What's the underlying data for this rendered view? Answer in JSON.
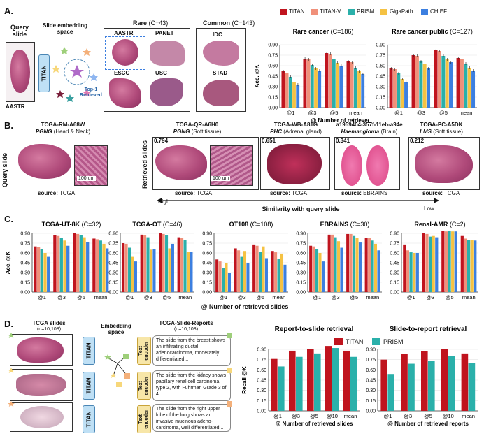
{
  "colors": {
    "titan": "#c0141e",
    "titan_v": "#f0907a",
    "prism": "#2ab0aa",
    "gigapath": "#f5c243",
    "chief": "#3c7fe0"
  },
  "panelA": {
    "label": "A.",
    "query_title": "Query\nslide",
    "query_name": "AASTR",
    "space_title": "Slide embedding\nspace",
    "titan": "TITAN",
    "top1": "Top-1\nRetrieved",
    "rare_title": "Rare",
    "rare_count": "(C=43)",
    "rare_items": [
      "AASTR",
      "PANET",
      "ESCC",
      "USC"
    ],
    "common_title": "Common",
    "common_count": "(C=143)",
    "common_items": [
      "IDC",
      "STAD"
    ],
    "legend": [
      "TITAN",
      "TITAN-V",
      "PRISM",
      "GigaPath",
      "CHIEF"
    ]
  },
  "panelB": {
    "label": "B.",
    "query_axis": "Query slide",
    "retrieved_axis": "Retrieved slides",
    "scale": "100 um",
    "slides": [
      {
        "id": "TCGA-RM-A68W",
        "dx": "PGNG",
        "site": "(Head & Neck)",
        "source": "TCGA",
        "score": ""
      },
      {
        "id": "TCGA-QR-A6H0",
        "dx": "PGNG",
        "site": "(Soft tissue)",
        "source": "TCGA",
        "score": "0.794"
      },
      {
        "id": "TCGA-WB-A81G",
        "dx": "PHC",
        "site": "(Adrenal gland)",
        "source": "TCGA",
        "score": "0.651"
      },
      {
        "id": "a1959404-357f-11eb-a94e",
        "dx": "Haemangioma",
        "site": "(Brain)",
        "source": "EBRAINS",
        "score": "0.341"
      },
      {
        "id": "TCGA-PC-A5DK",
        "dx": "LMS",
        "site": "(Soft tissue)",
        "source": "TCGA",
        "score": "0.212"
      }
    ],
    "source_label": "source:",
    "high": "High",
    "low": "Low",
    "similarity": "Similarity with query slide"
  },
  "panelC": {
    "label": "C."
  },
  "panelD": {
    "label": "D.",
    "slides_title": "TCGA slides",
    "slides_n": "(n=10,108)",
    "space_title": "Embedding\nspace",
    "reports_title": "TCGA-Slide-Reports",
    "reports_n": "(n=10,108)",
    "titan": "TITAN",
    "encoder": "Text\nencoder",
    "reports": [
      "The slide from the breast shows an infiltrating ductal adenocarcinoma, moderately differentiated...",
      "The slide from the kidney shows papillary renal cell carcinoma, type 2, with Fuhrman Grade 3 of 4...",
      "The slide from the right upper lobe of the lung shows an invasive mucinous adeno-carcinoma, well differentiated..."
    ],
    "legend": [
      "TITAN",
      "PRISM"
    ]
  },
  "chart_data": [
    {
      "type": "bar",
      "panel": "A",
      "title": "Rare cancer",
      "title_count": "(C=186)",
      "ylabel": "Acc. @K",
      "xlabel": "@ Number of retrieved slides",
      "categories": [
        "@1",
        "@3",
        "@5",
        "mean"
      ],
      "ylim": [
        0,
        0.9
      ],
      "yticks": [
        "0.00",
        "0.15",
        "0.30",
        "0.45",
        "0.60",
        "0.75",
        "0.90"
      ],
      "series": [
        {
          "name": "TITAN",
          "values": [
            0.52,
            0.7,
            0.78,
            0.66
          ]
        },
        {
          "name": "TITAN-V",
          "values": [
            0.5,
            0.69,
            0.77,
            0.65
          ]
        },
        {
          "name": "PRISM",
          "values": [
            0.44,
            0.61,
            0.69,
            0.57
          ]
        },
        {
          "name": "GigaPath",
          "values": [
            0.37,
            0.56,
            0.64,
            0.52
          ]
        },
        {
          "name": "CHIEF",
          "values": [
            0.33,
            0.53,
            0.6,
            0.48
          ]
        }
      ]
    },
    {
      "type": "bar",
      "panel": "A",
      "title": "Rare cancer public",
      "title_count": "(C=127)",
      "ylabel": "",
      "xlabel": "",
      "categories": [
        "@1",
        "@3",
        "@5",
        "mean"
      ],
      "ylim": [
        0,
        0.9
      ],
      "yticks": [
        "0.00",
        "0.15",
        "0.30",
        "0.45",
        "0.60",
        "0.75",
        "0.90"
      ],
      "series": [
        {
          "name": "TITAN",
          "values": [
            0.56,
            0.75,
            0.82,
            0.71
          ]
        },
        {
          "name": "TITAN-V",
          "values": [
            0.55,
            0.74,
            0.81,
            0.7
          ]
        },
        {
          "name": "PRISM",
          "values": [
            0.49,
            0.66,
            0.74,
            0.63
          ]
        },
        {
          "name": "GigaPath",
          "values": [
            0.41,
            0.62,
            0.69,
            0.57
          ]
        },
        {
          "name": "CHIEF",
          "values": [
            0.37,
            0.56,
            0.65,
            0.53
          ]
        }
      ]
    },
    {
      "type": "bar",
      "panel": "C",
      "title": "TCGA-UT-8K",
      "title_count": "(C=32)",
      "ylabel": "Acc. @K",
      "categories": [
        "@1",
        "@3",
        "@5",
        "mean"
      ],
      "ylim": [
        0,
        0.9
      ],
      "yticks": [
        "0.00",
        "0.15",
        "0.30",
        "0.45",
        "0.60",
        "0.75",
        "0.90"
      ],
      "series": [
        {
          "name": "TITAN",
          "values": [
            0.7,
            0.87,
            0.9,
            0.82
          ]
        },
        {
          "name": "TITAN-V",
          "values": [
            0.69,
            0.86,
            0.89,
            0.81
          ]
        },
        {
          "name": "PRISM",
          "values": [
            0.66,
            0.83,
            0.87,
            0.79
          ]
        },
        {
          "name": "GigaPath",
          "values": [
            0.6,
            0.79,
            0.84,
            0.74
          ]
        },
        {
          "name": "CHIEF",
          "values": [
            0.54,
            0.71,
            0.77,
            0.67
          ]
        }
      ]
    },
    {
      "type": "bar",
      "panel": "C",
      "title": "TCGA-OT",
      "title_count": "(C=46)",
      "ylabel": "",
      "categories": [
        "@1",
        "@3",
        "@5",
        "mean"
      ],
      "ylim": [
        0,
        0.9
      ],
      "yticks": [
        "0.00",
        "0.15",
        "0.30",
        "0.45",
        "0.60",
        "0.75",
        "0.90"
      ],
      "series": [
        {
          "name": "TITAN",
          "values": [
            0.75,
            0.88,
            0.9,
            0.84
          ]
        },
        {
          "name": "TITAN-V",
          "values": [
            0.74,
            0.87,
            0.89,
            0.83
          ]
        },
        {
          "name": "PRISM",
          "values": [
            0.68,
            0.84,
            0.87,
            0.8
          ]
        },
        {
          "name": "GigaPath",
          "values": [
            0.54,
            0.65,
            0.67,
            0.62
          ]
        },
        {
          "name": "CHIEF",
          "values": [
            0.47,
            0.66,
            0.74,
            0.62
          ]
        }
      ]
    },
    {
      "type": "bar",
      "panel": "C",
      "title": "OT108",
      "title_count": "(C=108)",
      "ylabel": "",
      "categories": [
        "@1",
        "@3",
        "@5",
        "mean"
      ],
      "ylim": [
        0,
        0.9
      ],
      "yticks": [
        "0.00",
        "0.15",
        "0.30",
        "0.45",
        "0.60",
        "0.75",
        "0.90"
      ],
      "series": [
        {
          "name": "TITAN",
          "values": [
            0.5,
            0.67,
            0.73,
            0.63
          ]
        },
        {
          "name": "TITAN-V",
          "values": [
            0.47,
            0.64,
            0.71,
            0.61
          ]
        },
        {
          "name": "PRISM",
          "values": [
            0.37,
            0.54,
            0.62,
            0.51
          ]
        },
        {
          "name": "GigaPath",
          "values": [
            0.44,
            0.63,
            0.7,
            0.59
          ]
        },
        {
          "name": "CHIEF",
          "values": [
            0.29,
            0.45,
            0.52,
            0.42
          ]
        }
      ]
    },
    {
      "type": "bar",
      "panel": "C",
      "title": "EBRAINS",
      "title_count": "(C=30)",
      "ylabel": "",
      "categories": [
        "@1",
        "@3",
        "@5",
        "mean"
      ],
      "ylim": [
        0,
        0.9
      ],
      "yticks": [
        "0.00",
        "0.15",
        "0.30",
        "0.45",
        "0.60",
        "0.75",
        "0.90"
      ],
      "series": [
        {
          "name": "TITAN",
          "values": [
            0.71,
            0.88,
            0.89,
            0.83
          ]
        },
        {
          "name": "TITAN-V",
          "values": [
            0.7,
            0.88,
            0.89,
            0.83
          ]
        },
        {
          "name": "PRISM",
          "values": [
            0.66,
            0.84,
            0.86,
            0.79
          ]
        },
        {
          "name": "GigaPath",
          "values": [
            0.6,
            0.78,
            0.83,
            0.74
          ]
        },
        {
          "name": "CHIEF",
          "values": [
            0.47,
            0.68,
            0.76,
            0.64
          ]
        }
      ]
    },
    {
      "type": "bar",
      "panel": "C",
      "title": "Renal-AMR",
      "title_count": "(C=2)",
      "ylabel": "",
      "categories": [
        "@1",
        "@3",
        "@5",
        "mean"
      ],
      "ylim": [
        0,
        0.9
      ],
      "yticks": [
        "0.00",
        "0.15",
        "0.30",
        "0.45",
        "0.60",
        "0.75",
        "0.90"
      ],
      "series": [
        {
          "name": "TITAN",
          "values": [
            0.73,
            0.9,
            0.94,
            0.86
          ]
        },
        {
          "name": "TITAN-V",
          "values": [
            0.64,
            0.89,
            0.93,
            0.82
          ]
        },
        {
          "name": "PRISM",
          "values": [
            0.61,
            0.85,
            0.94,
            0.8
          ]
        },
        {
          "name": "GigaPath",
          "values": [
            0.6,
            0.86,
            0.93,
            0.8
          ]
        },
        {
          "name": "CHIEF",
          "values": [
            0.6,
            0.84,
            0.93,
            0.79
          ]
        }
      ]
    },
    {
      "type": "bar",
      "panel": "D",
      "title": "Report-to-slide retrieval",
      "ylabel": "Recall @K",
      "xlabel": "@ Number of retrieved slides",
      "categories": [
        "@1",
        "@3",
        "@5",
        "@10",
        "mean"
      ],
      "ylim": [
        0,
        0.9
      ],
      "yticks": [
        "0.00",
        "0.15",
        "0.30",
        "0.45",
        "0.60",
        "0.75",
        "0.90"
      ],
      "series": [
        {
          "name": "TITAN",
          "values": [
            0.76,
            0.88,
            0.91,
            0.95,
            0.88
          ]
        },
        {
          "name": "PRISM",
          "values": [
            0.65,
            0.79,
            0.84,
            0.92,
            0.79
          ]
        }
      ]
    },
    {
      "type": "bar",
      "panel": "D",
      "title": "Slide-to-report retrieval",
      "ylabel": "",
      "xlabel": "@ Number of retrieved reports",
      "categories": [
        "@1",
        "@3",
        "@5",
        "@10",
        "mean"
      ],
      "ylim": [
        0,
        0.9
      ],
      "yticks": [
        "0.00",
        "0.15",
        "0.30",
        "0.45",
        "0.60",
        "0.75",
        "0.90"
      ],
      "series": [
        {
          "name": "TITAN",
          "values": [
            0.75,
            0.83,
            0.87,
            0.9,
            0.84
          ]
        },
        {
          "name": "PRISM",
          "values": [
            0.54,
            0.69,
            0.73,
            0.8,
            0.7
          ]
        }
      ]
    }
  ]
}
